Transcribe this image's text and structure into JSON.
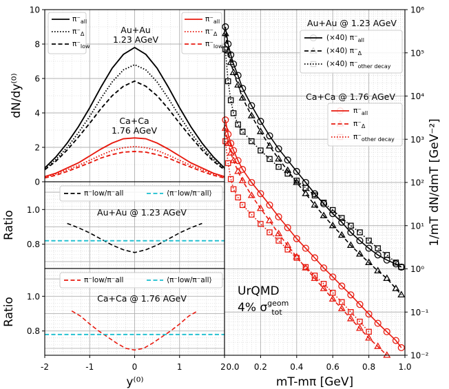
{
  "chart_data": [
    {
      "panel": "top-left",
      "type": "line",
      "ylabel": "dN/dy⁽⁰⁾",
      "xlim": [
        -2,
        2
      ],
      "ylim": [
        0,
        10
      ],
      "yticks": [
        "0",
        "2",
        "4",
        "6",
        "8",
        "10"
      ],
      "annotations": [
        "Au+Au",
        "1.23 AGeV",
        "Ca+Ca",
        "1.76 AGeV"
      ],
      "legend_black": [
        "π⁻all",
        "π⁻Δ",
        "π⁻low"
      ],
      "legend_red": [
        "π⁻all",
        "π⁻Δ",
        "π⁻low"
      ],
      "x": [
        -2.0,
        -1.75,
        -1.5,
        -1.25,
        -1.0,
        -0.75,
        -0.5,
        -0.25,
        0.0,
        0.25,
        0.5,
        0.75,
        1.0,
        1.25,
        1.5,
        1.75,
        2.0
      ],
      "series": [
        {
          "name": "π⁻all",
          "system": "Au+Au",
          "color": "#000000",
          "dash": "solid",
          "values": [
            0.8,
            1.45,
            2.25,
            3.2,
            4.3,
            5.5,
            6.6,
            7.4,
            7.8,
            7.4,
            6.6,
            5.5,
            4.3,
            3.2,
            2.25,
            1.45,
            0.8
          ]
        },
        {
          "name": "π⁻Δ",
          "system": "Au+Au",
          "color": "#000000",
          "dash": "dotted",
          "values": [
            0.75,
            1.3,
            2.0,
            2.85,
            3.8,
            4.85,
            5.8,
            6.5,
            6.8,
            6.5,
            5.8,
            4.85,
            3.8,
            2.85,
            2.0,
            1.3,
            0.75
          ]
        },
        {
          "name": "π⁻low",
          "system": "Au+Au",
          "color": "#000000",
          "dash": "dashed",
          "values": [
            0.7,
            1.2,
            1.85,
            2.6,
            3.4,
            4.25,
            5.0,
            5.55,
            5.85,
            5.55,
            5.0,
            4.25,
            3.4,
            2.6,
            1.85,
            1.2,
            0.7
          ]
        },
        {
          "name": "π⁻all",
          "system": "Ca+Ca",
          "color": "#e8190e",
          "dash": "solid",
          "values": [
            0.3,
            0.5,
            0.8,
            1.1,
            1.5,
            1.9,
            2.25,
            2.5,
            2.55,
            2.5,
            2.25,
            1.9,
            1.5,
            1.1,
            0.8,
            0.5,
            0.3
          ]
        },
        {
          "name": "π⁻Δ",
          "system": "Ca+Ca",
          "color": "#e8190e",
          "dash": "dotted",
          "values": [
            0.27,
            0.45,
            0.7,
            0.95,
            1.25,
            1.55,
            1.82,
            1.98,
            2.05,
            1.98,
            1.82,
            1.55,
            1.25,
            0.95,
            0.7,
            0.45,
            0.27
          ]
        },
        {
          "name": "π⁻low",
          "system": "Ca+Ca",
          "color": "#e8190e",
          "dash": "dashed",
          "values": [
            0.22,
            0.38,
            0.6,
            0.85,
            1.1,
            1.38,
            1.58,
            1.72,
            1.76,
            1.72,
            1.58,
            1.38,
            1.1,
            0.85,
            0.6,
            0.38,
            0.22
          ]
        }
      ]
    },
    {
      "panel": "mid-left",
      "type": "line",
      "ylabel": "Ratio",
      "xlim": [
        -2,
        2
      ],
      "ylim": [
        0.66,
        1.16
      ],
      "yticks": [
        "0.8",
        "1.0"
      ],
      "title": "Au+Au @ 1.23 AGeV",
      "legend": [
        "π⁻low/π⁻all",
        "⟨π⁻low/π⁻all⟩"
      ],
      "x": [
        -1.5,
        -1.25,
        -1.0,
        -0.75,
        -0.5,
        -0.25,
        0.0,
        0.25,
        0.5,
        0.75,
        1.0,
        1.25,
        1.5
      ],
      "series": [
        {
          "name": "π⁻low/π⁻all",
          "color": "#000000",
          "dash": "dashed",
          "values": [
            0.92,
            0.895,
            0.865,
            0.83,
            0.795,
            0.768,
            0.752,
            0.768,
            0.795,
            0.83,
            0.865,
            0.895,
            0.92
          ]
        },
        {
          "name": "⟨π⁻low/π⁻all⟩",
          "color": "#17becf",
          "dash": "dashed",
          "constant": 0.82
        }
      ]
    },
    {
      "panel": "bottom-left",
      "type": "line",
      "ylabel": "Ratio",
      "xlabel": "y⁽⁰⁾",
      "xlim": [
        -2,
        2
      ],
      "ylim": [
        0.66,
        1.16
      ],
      "xticks": [
        "-2",
        "-1",
        "0",
        "1",
        "2"
      ],
      "yticks": [
        "0.8",
        "1.0"
      ],
      "title": "Ca+Ca @ 1.76 AGeV",
      "legend": [
        "π⁻low/π⁻all",
        "⟨π⁻low/π⁻all⟩"
      ],
      "x": [
        -1.4,
        -1.2,
        -1.0,
        -0.8,
        -0.6,
        -0.4,
        -0.2,
        0.0,
        0.2,
        0.4,
        0.6,
        0.8,
        1.0,
        1.2,
        1.4
      ],
      "series": [
        {
          "name": "π⁻low/π⁻all",
          "color": "#e8190e",
          "dash": "dashed",
          "values": [
            0.915,
            0.885,
            0.84,
            0.8,
            0.765,
            0.73,
            0.7,
            0.69,
            0.7,
            0.73,
            0.765,
            0.8,
            0.84,
            0.885,
            0.915
          ]
        },
        {
          "name": "⟨π⁻low/π⁻all⟩",
          "color": "#17becf",
          "dash": "dashed",
          "constant": 0.78
        }
      ]
    },
    {
      "panel": "right",
      "type": "scatter",
      "xlabel": "mT-mπ [GeV]",
      "ylabel": "1/mT dN/dmT [GeV⁻²]",
      "yscale": "log",
      "xlim": [
        0.0,
        1.0
      ],
      "ylim": [
        0.01,
        1000000
      ],
      "xticks": [
        "0.0",
        "0.2",
        "0.4",
        "0.6",
        "0.8",
        "1.0"
      ],
      "yticks": [
        "10⁻²",
        "10⁻¹",
        "10⁰",
        "10¹",
        "10²",
        "10³",
        "10⁴",
        "10⁵",
        "10⁶"
      ],
      "annotations": [
        "Au+Au @ 1.23 AGeV",
        "Ca+Ca @ 1.76 AGeV",
        "UrQMD",
        "4% σ geom tot"
      ],
      "legend_black": [
        "(×40) π⁻all",
        "(×40) π⁻Δ",
        "(×40) π⁻other decay"
      ],
      "legend_red": [
        "π⁻all",
        "π⁻Δ",
        "π⁻other decay"
      ],
      "series": [
        {
          "name": "(×40) π⁻all",
          "color": "#000000",
          "marker": "circle",
          "line": "solid",
          "x": [
            0.005,
            0.02,
            0.035,
            0.05,
            0.075,
            0.1,
            0.15,
            0.2,
            0.25,
            0.3,
            0.35,
            0.4,
            0.45,
            0.5,
            0.55,
            0.6,
            0.65,
            0.7,
            0.75,
            0.8,
            0.85,
            0.9,
            0.95,
            0.98
          ],
          "values": [
            400000,
            160000,
            90000,
            55000,
            30000,
            15000,
            6000,
            2600,
            1200,
            600,
            330,
            180,
            100,
            55,
            32,
            19,
            12,
            7,
            4.5,
            3,
            2.1,
            1.6,
            1.3,
            1.1
          ]
        },
        {
          "name": "(×40) π⁻Δ",
          "color": "#000000",
          "marker": "triangle",
          "line": "dashed",
          "x": [
            0.005,
            0.02,
            0.035,
            0.05,
            0.075,
            0.1,
            0.15,
            0.2,
            0.25,
            0.3,
            0.35,
            0.4,
            0.45,
            0.5,
            0.55,
            0.6,
            0.65,
            0.7,
            0.75,
            0.8,
            0.85,
            0.9,
            0.95,
            0.98
          ],
          "values": [
            280000,
            110000,
            60000,
            35000,
            18000,
            9000,
            3500,
            1500,
            700,
            350,
            190,
            100,
            55,
            30,
            17,
            10,
            6,
            3.5,
            2.2,
            1.4,
            0.9,
            0.6,
            0.35,
            0.25
          ]
        },
        {
          "name": "(×40) π⁻other decay",
          "color": "#000000",
          "marker": "square",
          "line": "dotted",
          "x": [
            0.005,
            0.02,
            0.035,
            0.05,
            0.075,
            0.1,
            0.15,
            0.2,
            0.25,
            0.3,
            0.35,
            0.4,
            0.45,
            0.5,
            0.55,
            0.6,
            0.65,
            0.7,
            0.75,
            0.8,
            0.85,
            0.9,
            0.95,
            0.98
          ],
          "values": [
            120000,
            22000,
            8000,
            4000,
            2200,
            1500,
            900,
            550,
            350,
            230,
            160,
            110,
            75,
            50,
            34,
            23,
            15,
            10,
            7,
            4.5,
            3,
            2.1,
            1.4,
            1.1
          ]
        },
        {
          "name": "π⁻all",
          "color": "#e8190e",
          "marker": "circle",
          "line": "solid",
          "x": [
            0.005,
            0.02,
            0.035,
            0.05,
            0.075,
            0.1,
            0.15,
            0.2,
            0.25,
            0.3,
            0.35,
            0.4,
            0.45,
            0.5,
            0.55,
            0.6,
            0.65,
            0.7,
            0.75,
            0.8,
            0.85,
            0.9,
            0.95,
            0.98
          ],
          "values": [
            2800,
            1300,
            800,
            550,
            320,
            200,
            100,
            55,
            30,
            16,
            9,
            5,
            3,
            1.8,
            1.05,
            0.65,
            0.4,
            0.25,
            0.15,
            0.09,
            0.055,
            0.035,
            0.022,
            0.015
          ]
        },
        {
          "name": "π⁻Δ",
          "color": "#e8190e",
          "marker": "triangle",
          "line": "dashed",
          "x": [
            0.005,
            0.02,
            0.035,
            0.05,
            0.075,
            0.1,
            0.15,
            0.2,
            0.25,
            0.3,
            0.35,
            0.4,
            0.45,
            0.5,
            0.55,
            0.6,
            0.65,
            0.7,
            0.75,
            0.8,
            0.85,
            0.9
          ],
          "values": [
            1800,
            800,
            480,
            320,
            180,
            110,
            50,
            25,
            13,
            6.5,
            3.5,
            1.9,
            1.05,
            0.6,
            0.35,
            0.2,
            0.12,
            0.07,
            0.042,
            0.025,
            0.016,
            0.01
          ]
        },
        {
          "name": "π⁻other decay",
          "color": "#e8190e",
          "marker": "square",
          "line": "dotted",
          "x": [
            0.005,
            0.02,
            0.035,
            0.05,
            0.075,
            0.1,
            0.15,
            0.2,
            0.25,
            0.3,
            0.35,
            0.4,
            0.45,
            0.5,
            0.55,
            0.6,
            0.65,
            0.7,
            0.75,
            0.8
          ],
          "values": [
            900,
            280,
            120,
            70,
            45,
            30,
            18,
            11,
            7,
            4.5,
            2.8,
            1.8,
            1.1,
            0.7,
            0.45,
            0.28,
            0.17,
            0.1,
            0.06,
            0.035
          ]
        }
      ]
    }
  ]
}
